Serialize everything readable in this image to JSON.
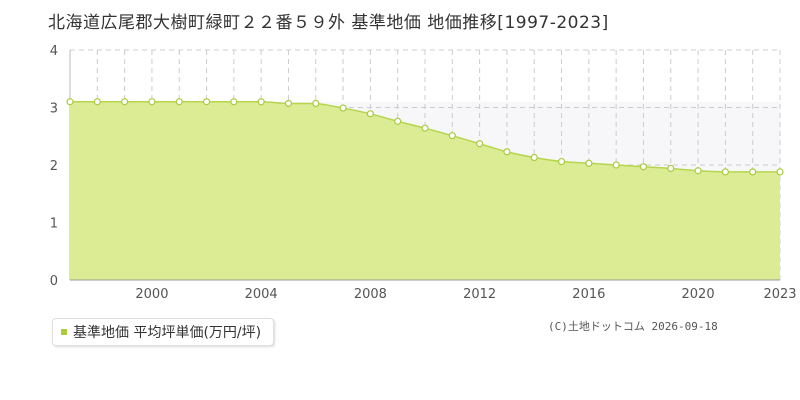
{
  "title": "北海道広尾郡大樹町緑町２２番５９外 基準地価 地価推移[1997-2023]",
  "legend_label": "基準地価 平均坪単価(万円/坪)",
  "credit": "(C)土地ドットコム 2026-09-18",
  "colors": {
    "area_fill": "#dcec94",
    "line": "#b5d64c",
    "point_fill": "#ffffff",
    "point_stroke": "#a8cc3c",
    "upper_band": "#f7f6f9",
    "grid": "#cccccc"
  },
  "chart_data": {
    "type": "area",
    "title": "北海道広尾郡大樹町緑町２２番５９外 基準地価 地価推移[1997-2023]",
    "xlabel": "",
    "ylabel": "",
    "x_ticks": [
      "2000",
      "2004",
      "2008",
      "2012",
      "2016",
      "2020",
      "2023"
    ],
    "y_ticks": [
      "0",
      "1",
      "2",
      "3",
      "4"
    ],
    "xlim": [
      1997,
      2023
    ],
    "ylim": [
      0,
      4
    ],
    "grid": true,
    "legend_position": "bottom-left",
    "series": [
      {
        "name": "基準地価 平均坪単価(万円/坪)",
        "x": [
          1997,
          1998,
          1999,
          2000,
          2001,
          2002,
          2003,
          2004,
          2005,
          2006,
          2007,
          2008,
          2009,
          2010,
          2011,
          2012,
          2013,
          2014,
          2015,
          2016,
          2017,
          2018,
          2019,
          2020,
          2021,
          2022,
          2023
        ],
        "values": [
          3.1,
          3.1,
          3.1,
          3.1,
          3.1,
          3.1,
          3.1,
          3.1,
          3.07,
          3.07,
          2.99,
          2.89,
          2.76,
          2.64,
          2.51,
          2.37,
          2.23,
          2.13,
          2.06,
          2.03,
          2.0,
          1.97,
          1.94,
          1.9,
          1.88,
          1.88,
          1.88
        ]
      }
    ]
  }
}
